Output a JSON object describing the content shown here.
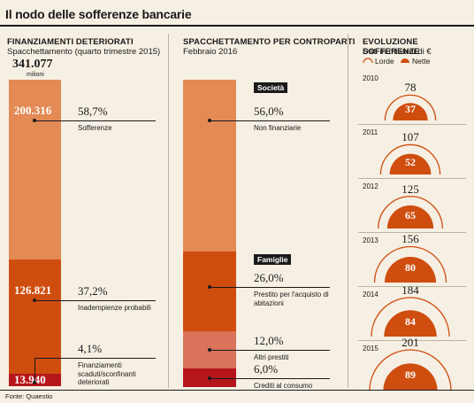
{
  "title": "Il nodo delle sofferenze bancarie",
  "source": "Fonte: Quaestio",
  "colors": {
    "orange_light": "#e38a55",
    "orange_dark": "#cf4d0e",
    "salmon": "#d9735a",
    "red": "#b5161b",
    "semi_outline": "#cf4d0e"
  },
  "chart_data": [
    {
      "type": "bar",
      "title": "FINANZIAMENTI DETERIORATI",
      "subtitle": "Spacchettamento (quarto trimestre 2015)",
      "total": "341.077",
      "total_unit": "milioni",
      "segments": [
        {
          "value": 200316,
          "value_label": "200.316",
          "pct_label": "58,7%",
          "label": "Sofferenze",
          "color": "#e38a55"
        },
        {
          "value": 126821,
          "value_label": "126.821",
          "pct_label": "37,2%",
          "label": "Inadempienze probabili",
          "color": "#cf4d0e"
        },
        {
          "value": 13940,
          "value_label": "13.940",
          "pct_label": "4,1%",
          "label": "Finanziamenti scaduti/sconfinanti deteriorati",
          "color": "#b5161b"
        }
      ]
    },
    {
      "type": "bar",
      "title": "SPACCHETTAMENTO PER CONTROPARTI",
      "subtitle": "Febbraio 2016",
      "groups": [
        {
          "tag": "Società",
          "segments": [
            {
              "value": 56.0,
              "pct_label": "56,0%",
              "label": "Non finanziarie",
              "color": "#e38a55"
            }
          ]
        },
        {
          "tag": "Famiglie",
          "segments": [
            {
              "value": 26.0,
              "pct_label": "26,0%",
              "label": "Prestito per l'acquisto di abitazioni",
              "color": "#cf4d0e"
            },
            {
              "value": 12.0,
              "pct_label": "12,0%",
              "label": "Altri prestiti",
              "color": "#d9735a"
            },
            {
              "value": 6.0,
              "pct_label": "6,0%",
              "label": "Crediti al consumo",
              "color": "#b5161b"
            }
          ]
        }
      ]
    },
    {
      "type": "semicircle",
      "title": "EVOLUZIONE SOFFERENZE",
      "subtitle": "Dati in miliardi di €",
      "legend": [
        "Lorde",
        "Nette"
      ],
      "years": [
        "2010",
        "2011",
        "2012",
        "2013",
        "2014",
        "2015"
      ],
      "series": [
        {
          "name": "Lorde",
          "values": [
            78,
            107,
            125,
            156,
            184,
            201
          ]
        },
        {
          "name": "Nette",
          "values": [
            37,
            52,
            65,
            80,
            84,
            89
          ]
        }
      ]
    }
  ]
}
